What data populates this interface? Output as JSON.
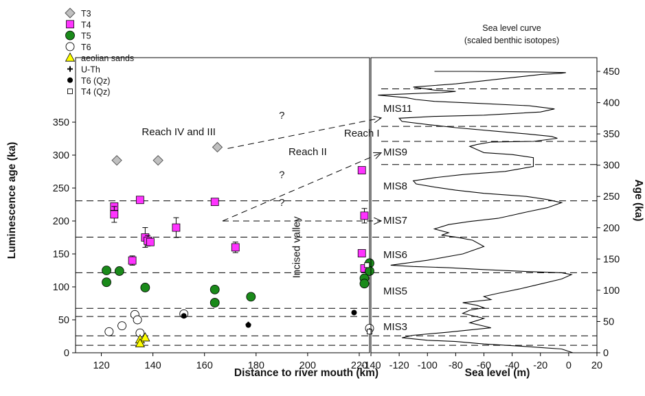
{
  "chart_data": [
    {
      "type": "scatter",
      "xlabel": "Distance to river mouth (km)",
      "ylabel": "Luminescence age (ka)",
      "xlim": [
        110,
        224
      ],
      "ylim": [
        0,
        350
      ],
      "x_ticks": [
        "120",
        "140",
        "160",
        "180",
        "200",
        "220"
      ],
      "y_ticks": [
        "0",
        "50",
        "100",
        "150",
        "200",
        "250",
        "300",
        "350"
      ],
      "legend": [
        {
          "label": "T3",
          "marker": "diamond",
          "color": "#c0c0c0"
        },
        {
          "label": "T4",
          "marker": "square",
          "color": "#ff33ff"
        },
        {
          "label": "T5",
          "marker": "circle",
          "color": "#1a8a1a"
        },
        {
          "label": "T6",
          "marker": "circle-open",
          "color": "#ffffff"
        },
        {
          "label": "aeolian sands",
          "marker": "triangle",
          "color": "#ffff00"
        },
        {
          "label": "U-Th",
          "marker": "plus",
          "color": "#000000"
        },
        {
          "label": "T6 (Qz)",
          "marker": "dot",
          "color": "#000000"
        },
        {
          "label": "T4 (Qz)",
          "marker": "square-open-small",
          "color": "#ffffff"
        }
      ],
      "legend_position": "top-left",
      "series": [
        {
          "name": "T3",
          "marker": "diamond",
          "points": [
            {
              "x": 126,
              "y": 292
            },
            {
              "x": 142,
              "y": 292
            },
            {
              "x": 165,
              "y": 312
            }
          ]
        },
        {
          "name": "T4",
          "marker": "square",
          "points": [
            {
              "x": 125,
              "y": 222
            },
            {
              "x": 125,
              "y": 210,
              "err": 12
            },
            {
              "x": 135,
              "y": 232
            },
            {
              "x": 137,
              "y": 175,
              "err": 15
            },
            {
              "x": 138,
              "y": 170,
              "err": 8
            },
            {
              "x": 139,
              "y": 168
            },
            {
              "x": 132,
              "y": 140,
              "err": 7
            },
            {
              "x": 149,
              "y": 190,
              "err": 15
            },
            {
              "x": 164,
              "y": 229
            },
            {
              "x": 172,
              "y": 160,
              "err": 8
            },
            {
              "x": 221,
              "y": 277
            },
            {
              "x": 222,
              "y": 208,
              "err": 11
            },
            {
              "x": 221,
              "y": 151
            },
            {
              "x": 222,
              "y": 128
            }
          ]
        },
        {
          "name": "T5",
          "marker": "circle",
          "points": [
            {
              "x": 122,
              "y": 125
            },
            {
              "x": 122,
              "y": 107
            },
            {
              "x": 127,
              "y": 124
            },
            {
              "x": 137,
              "y": 99
            },
            {
              "x": 164,
              "y": 96
            },
            {
              "x": 164,
              "y": 76
            },
            {
              "x": 178,
              "y": 85
            },
            {
              "x": 224,
              "y": 136
            },
            {
              "x": 224,
              "y": 124
            },
            {
              "x": 222,
              "y": 113
            },
            {
              "x": 222,
              "y": 105
            }
          ]
        },
        {
          "name": "T6",
          "marker": "circle-open",
          "points": [
            {
              "x": 123,
              "y": 32
            },
            {
              "x": 128,
              "y": 41
            },
            {
              "x": 133,
              "y": 58
            },
            {
              "x": 134,
              "y": 50
            },
            {
              "x": 135,
              "y": 30
            },
            {
              "x": 152,
              "y": 59
            },
            {
              "x": 224,
              "y": 37
            }
          ]
        },
        {
          "name": "aeolian sands",
          "marker": "triangle",
          "points": [
            {
              "x": 135,
              "y": 20
            },
            {
              "x": 137,
              "y": 23
            },
            {
              "x": 135,
              "y": 14
            }
          ]
        },
        {
          "name": "U-Th",
          "marker": "plus",
          "points": [
            {
              "x": 177,
              "y": 43
            },
            {
              "x": 224,
              "y": 33
            }
          ]
        },
        {
          "name": "T6 (Qz)",
          "marker": "dot",
          "points": [
            {
              "x": 152,
              "y": 56
            },
            {
              "x": 177,
              "y": 42
            },
            {
              "x": 218,
              "y": 61
            }
          ]
        },
        {
          "name": "T4 (Qz)",
          "marker": "square-open-small",
          "points": [
            {
              "x": 223,
              "y": 133
            },
            {
              "x": 224,
              "y": 32
            }
          ]
        }
      ],
      "annotations": [
        {
          "text": "Reach IV and III",
          "x": 150,
          "y": 330
        },
        {
          "text": "Reach II",
          "x": 200,
          "y": 300
        },
        {
          "text": "Reach I",
          "x": 221,
          "y": 328
        },
        {
          "text": "Incised valley",
          "x": 197,
          "y": 160,
          "rotation": -90
        },
        {
          "text": "?",
          "x": 190,
          "y": 355
        },
        {
          "text": "?",
          "x": 190,
          "y": 265
        },
        {
          "text": "?",
          "x": 190,
          "y": 223
        }
      ],
      "arrows": [
        {
          "from": [
            169,
            310
          ],
          "to_mis": "MIS11"
        },
        {
          "from": [
            167,
            200
          ],
          "to_mis": "MIS9"
        },
        {
          "from": [
            167,
            200
          ],
          "to_mis": "MIS7"
        }
      ]
    },
    {
      "type": "line",
      "title": "Sea level curve",
      "subtitle": "(scaled benthic isotopes)",
      "xlabel": "Sea level (m)",
      "ylabel": "Age (ka)",
      "xlim": [
        -140,
        20
      ],
      "ylim": [
        0,
        450
      ],
      "x_ticks": [
        "-140",
        "-120",
        "-100",
        "-80",
        "-60",
        "-40",
        "-20",
        "0",
        "20"
      ],
      "y_ticks": [
        "0",
        "50",
        "100",
        "150",
        "200",
        "250",
        "300",
        "350",
        "400",
        "450"
      ],
      "x_values": [
        3,
        -5,
        -30,
        -60,
        -80,
        -100,
        -118,
        -110,
        -85,
        -55,
        -70,
        -60,
        -75,
        -70,
        -60,
        -65,
        -75,
        -55,
        -60,
        -50,
        -35,
        -20,
        -5,
        2,
        -5,
        -30,
        -60,
        -85,
        -110,
        -126,
        -100,
        -75,
        -60,
        -68,
        -80,
        -90,
        -85,
        -95,
        -85,
        -70,
        -50,
        -40,
        -30,
        -15,
        -5,
        -15,
        -30,
        -60,
        -80,
        -95,
        -108,
        -110,
        -95,
        -75,
        -45,
        -25,
        -25,
        -25,
        -40,
        -60,
        -65,
        -70,
        -65,
        -55,
        -25,
        -8,
        -12,
        -30,
        -55,
        -80,
        -100,
        -118,
        -120,
        -95,
        -60,
        -20,
        -10,
        -28,
        -55,
        -75,
        -95,
        -108,
        -115,
        -125,
        -135,
        -105,
        -90,
        -80,
        -95,
        -110,
        -80,
        -60,
        -40,
        -20,
        -5,
        -2,
        -20,
        -70,
        -95
      ],
      "y_values": [
        0,
        6,
        10,
        14,
        18,
        20,
        24,
        28,
        33,
        40,
        48,
        55,
        63,
        68,
        72,
        76,
        80,
        85,
        90,
        95,
        102,
        110,
        118,
        125,
        128,
        130,
        133,
        136,
        138,
        140,
        148,
        158,
        170,
        180,
        185,
        188,
        192,
        198,
        205,
        210,
        215,
        220,
        225,
        232,
        240,
        245,
        250,
        255,
        260,
        265,
        270,
        275,
        280,
        285,
        290,
        298,
        305,
        312,
        317,
        320,
        325,
        330,
        333,
        337,
        338,
        343,
        346,
        350,
        355,
        360,
        365,
        370,
        375,
        378,
        380,
        385,
        390,
        395,
        398,
        400,
        402,
        405,
        408,
        410,
        412,
        415,
        416,
        418,
        420,
        425,
        430,
        435,
        440,
        445,
        447,
        448,
        449,
        450,
        450
      ],
      "mis_labels": [
        {
          "text": "MIS3",
          "age": 43
        },
        {
          "text": "MIS5",
          "age": 100
        },
        {
          "text": "MIS6",
          "age": 158
        },
        {
          "text": "MIS7",
          "age": 213
        },
        {
          "text": "MIS8",
          "age": 268
        },
        {
          "text": "MIS9",
          "age": 322
        },
        {
          "text": "MIS11",
          "age": 392
        }
      ],
      "boundaries_ka": [
        12,
        27,
        58,
        71,
        128,
        185,
        243,
        301,
        338,
        362,
        422
      ]
    }
  ]
}
